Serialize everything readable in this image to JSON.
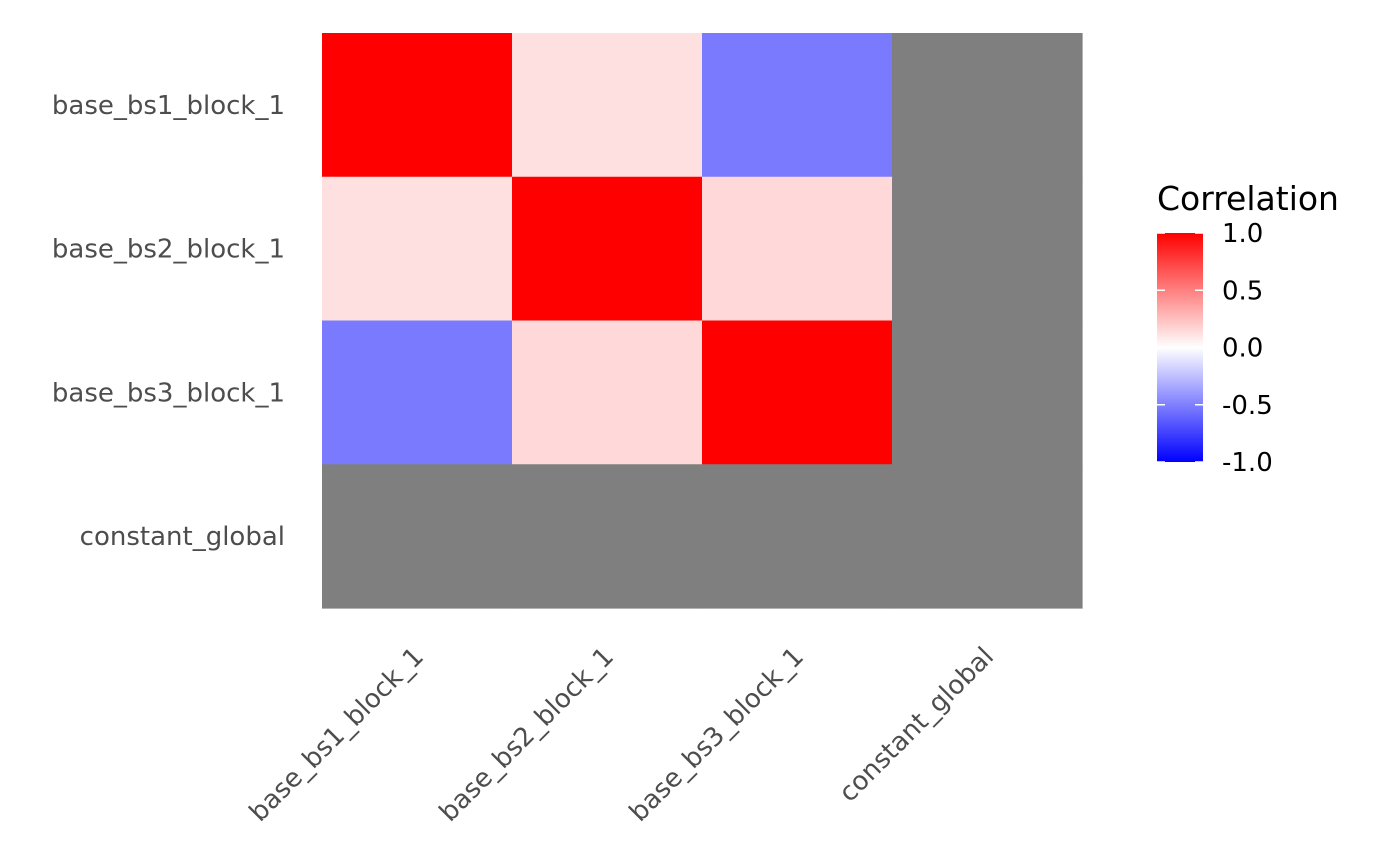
{
  "chart_data": {
    "type": "heatmap",
    "title": "",
    "xlabel": "",
    "ylabel": "",
    "rows": [
      "base_bs1_block_1",
      "base_bs2_block_1",
      "base_bs3_block_1",
      "constant_global"
    ],
    "columns": [
      "base_bs1_block_1",
      "base_bs2_block_1",
      "base_bs3_block_1",
      "constant_global"
    ],
    "values": [
      [
        1.0,
        0.12,
        -0.52,
        null
      ],
      [
        0.12,
        1.0,
        0.15,
        null
      ],
      [
        -0.52,
        0.15,
        1.0,
        null
      ],
      [
        null,
        null,
        null,
        null
      ]
    ],
    "na_color": "#7f7f7f",
    "legend": {
      "title": "Correlation",
      "position": "right",
      "range": [
        -1.0,
        1.0
      ],
      "ticks": [
        1.0,
        0.5,
        0.0,
        -0.5,
        -1.0
      ],
      "tick_labels": [
        "1.0",
        "0.5",
        "0.0",
        "-0.5",
        "-1.0"
      ],
      "low_color": "#0000ff",
      "mid_color": "#ffffff",
      "high_color": "#ff0000"
    }
  }
}
